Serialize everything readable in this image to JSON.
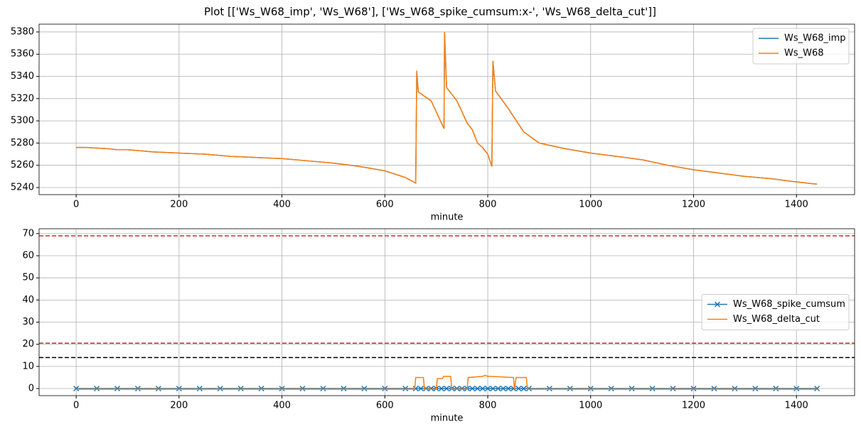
{
  "title": "Plot [['Ws_W68_imp', 'Ws_W68'], ['Ws_W68_spike_cumsum:x-', 'Ws_W68_delta_cut']]",
  "chart_data": [
    {
      "type": "line",
      "xlabel": "minute",
      "x": [
        0,
        20,
        40,
        60,
        80,
        100,
        150,
        200,
        250,
        300,
        350,
        400,
        450,
        500,
        550,
        600,
        640,
        660,
        662,
        665,
        690,
        715,
        716,
        720,
        740,
        760,
        770,
        780,
        790,
        800,
        808,
        810,
        815,
        840,
        870,
        900,
        950,
        1000,
        1050,
        1100,
        1150,
        1200,
        1250,
        1300,
        1350,
        1400,
        1440
      ],
      "series": [
        {
          "name": "Ws_W68_imp",
          "color": "#1f77b4",
          "values": [
            5276,
            5276,
            5275.5,
            5275,
            5274,
            5274,
            5272,
            5271,
            5270,
            5268,
            5267,
            5266,
            5264,
            5262,
            5259,
            5255,
            5249,
            5244,
            5345,
            5326,
            5318,
            5293,
            5380,
            5330,
            5318,
            5298,
            5292,
            5280,
            5276,
            5270,
            5259,
            5354,
            5327,
            5311,
            5290,
            5280,
            5275,
            5271,
            5268,
            5265,
            5260,
            5256,
            5253,
            5250,
            5248,
            5245,
            5243
          ]
        },
        {
          "name": "Ws_W68",
          "color": "#ff7f0e",
          "values": [
            5276,
            5276,
            5275.5,
            5275,
            5274,
            5274,
            5272,
            5271,
            5270,
            5268,
            5267,
            5266,
            5264,
            5262,
            5259,
            5255,
            5249,
            5244,
            5345,
            5326,
            5318,
            5293,
            5380,
            5330,
            5318,
            5298,
            5292,
            5280,
            5276,
            5270,
            5259,
            5354,
            5327,
            5311,
            5290,
            5280,
            5275,
            5271,
            5268,
            5265,
            5260,
            5256,
            5253,
            5250,
            5248,
            5245,
            5243
          ]
        }
      ],
      "xlim": [
        -72,
        1513
      ],
      "xticks": [
        0,
        200,
        400,
        600,
        800,
        1000,
        1200,
        1400
      ],
      "ylim": [
        5233.6,
        5387
      ],
      "yticks": [
        5240,
        5260,
        5280,
        5300,
        5320,
        5340,
        5360,
        5380
      ],
      "grid": true,
      "legend": "upper right"
    },
    {
      "type": "line",
      "xlabel": "minute",
      "series": [
        {
          "name": "Ws_W68_spike_cumsum",
          "color": "#1f77b4",
          "marker": "x",
          "x": [
            0,
            40,
            80,
            120,
            160,
            200,
            240,
            280,
            320,
            360,
            400,
            440,
            480,
            520,
            560,
            600,
            640,
            660,
            670,
            680,
            690,
            700,
            710,
            720,
            730,
            740,
            750,
            760,
            770,
            780,
            790,
            800,
            810,
            820,
            830,
            840,
            850,
            860,
            870,
            880,
            920,
            960,
            1000,
            1040,
            1080,
            1120,
            1160,
            1200,
            1240,
            1280,
            1320,
            1360,
            1400,
            1440
          ],
          "values": [
            0,
            0,
            0,
            0,
            0,
            0,
            0,
            0,
            0,
            0,
            0,
            0,
            0,
            0,
            0,
            0,
            0,
            0,
            0,
            0,
            0,
            0,
            0,
            0,
            0,
            0,
            0,
            0,
            0,
            0,
            0,
            0,
            0,
            0,
            0,
            0,
            0,
            0,
            0,
            0,
            0,
            0,
            0,
            0,
            0,
            0,
            0,
            0,
            0,
            0,
            0,
            0,
            0,
            0
          ]
        },
        {
          "name": "Ws_W68_delta_cut",
          "color": "#ff7f0e",
          "x": [
            0,
            658,
            660,
            675,
            677,
            700,
            702,
            712,
            714,
            728,
            730,
            760,
            762,
            790,
            795,
            800,
            805,
            850,
            852,
            855,
            875,
            877,
            1440
          ],
          "values": [
            -0.3,
            -0.3,
            5,
            5,
            -0.3,
            -0.3,
            4.5,
            4.5,
            5.5,
            5.5,
            -0.3,
            -0.3,
            5,
            5.5,
            6,
            5.5,
            5.5,
            5,
            -0.3,
            5,
            5,
            -0.3,
            -0.3
          ]
        }
      ],
      "hlines": [
        {
          "value": 69,
          "color": "#d62728"
        },
        {
          "value": 20.5,
          "color": "#d62728"
        },
        {
          "value": 14,
          "color": "#000000"
        }
      ],
      "xlim": [
        -72,
        1513
      ],
      "xticks": [
        0,
        200,
        400,
        600,
        800,
        1000,
        1200,
        1400
      ],
      "ylim": [
        -3.2,
        72.2
      ],
      "yticks": [
        0,
        10,
        20,
        30,
        40,
        50,
        60,
        70
      ],
      "grid": true,
      "legend": "center right"
    }
  ]
}
